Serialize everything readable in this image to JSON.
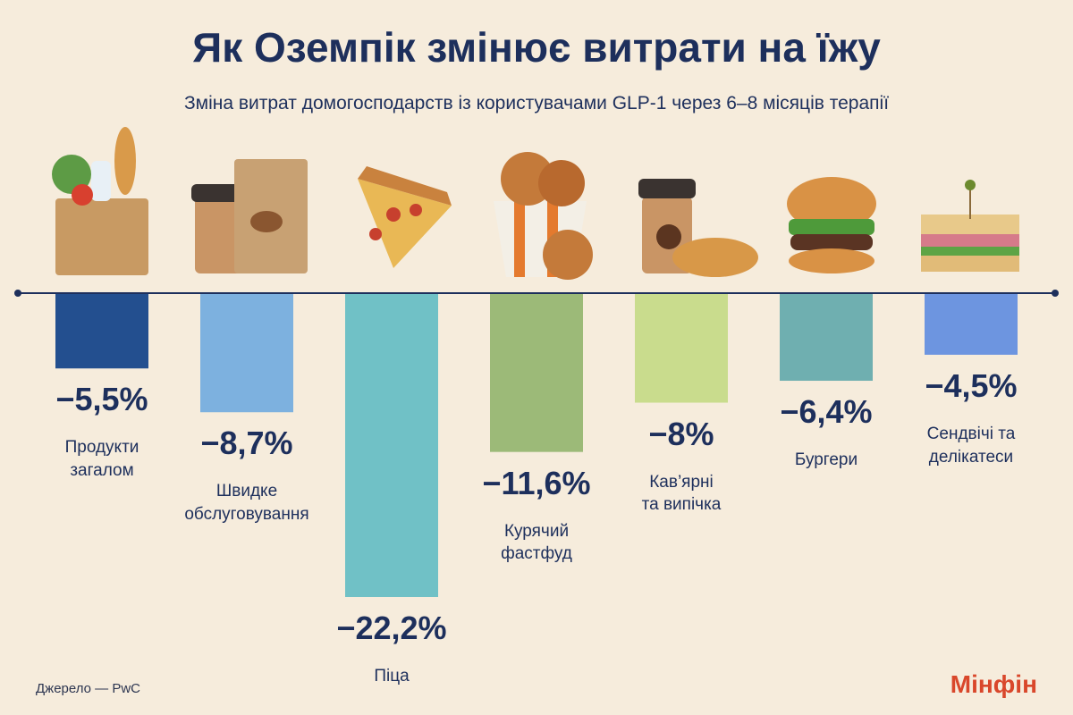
{
  "chart_data": {
    "type": "bar",
    "title": "Як Оземпік змінює витрати на їжу",
    "subtitle": "Зміна витрат домогосподарств із користувачами GLP-1 через 6–8 місяців терапії",
    "categories": [
      "Продукти\nзагалом",
      "Швидке\nобслуговування",
      "Піца",
      "Курячий\nфастфуд",
      "Кав’ярні\nта випічка",
      "Бургери",
      "Сендвічі та\nделікатеси"
    ],
    "values": [
      -5.5,
      -8.7,
      -22.2,
      -11.6,
      -8,
      -6.4,
      -4.5
    ],
    "value_labels": [
      "−5,5%",
      "−8,7%",
      "−22,2%",
      "−11,6%",
      "−8%",
      "−6,4%",
      "−4,5%"
    ],
    "colors": [
      "#234f8f",
      "#7db1df",
      "#70c1c6",
      "#9cba78",
      "#c9dc8d",
      "#6fafb0",
      "#6d95e0"
    ],
    "source": "Джерело — PwC",
    "brand": "Мінфін"
  }
}
